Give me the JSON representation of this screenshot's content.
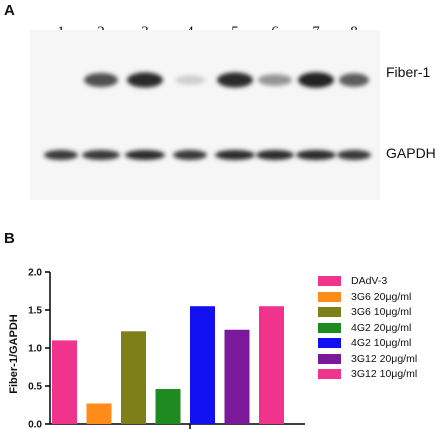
{
  "panels": {
    "a_label": "A",
    "b_label": "B"
  },
  "blot": {
    "lanes": [
      "1",
      "2",
      "3",
      "4",
      "5",
      "6",
      "7",
      "8"
    ],
    "fiber_intensity": [
      0.0,
      0.75,
      0.9,
      0.2,
      0.9,
      0.45,
      0.95,
      0.7
    ],
    "gapdh_intensity": [
      0.85,
      0.85,
      0.9,
      0.85,
      0.9,
      0.9,
      0.9,
      0.85
    ],
    "fiber_label": "Fiber-1",
    "gapdh_label": "GAPDH"
  },
  "chart_data": {
    "type": "bar",
    "categories": [
      "DAdV-3",
      "3G6 20μg/ml",
      "3G6 10μg/ml",
      "4G2 20μg/ml",
      "4G2 10μg/ml",
      "3G12 20μg/ml",
      "3G12 10μg/ml"
    ],
    "values": [
      1.1,
      0.27,
      1.22,
      0.46,
      1.55,
      1.24,
      1.55
    ],
    "colors": [
      "#f0338d",
      "#ff8c1a",
      "#7f7f1a",
      "#1f8a1f",
      "#1010f0",
      "#7a1a9a",
      "#f0338d"
    ],
    "ylabel": "Fiber-1/GAPDH",
    "ylim": [
      0,
      2.0
    ],
    "yticks": [
      "0.0",
      "0.5",
      "1.0",
      "1.5",
      "2.0"
    ],
    "legend_position": "right"
  }
}
